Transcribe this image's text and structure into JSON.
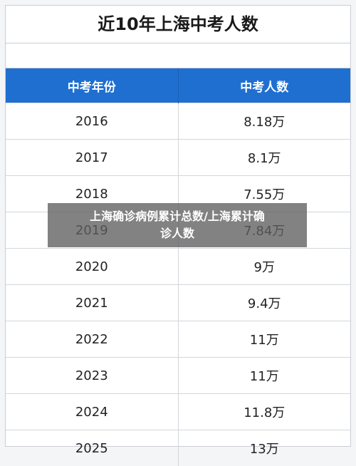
{
  "title": "近10年上海中考人数",
  "table": {
    "headers": [
      "中考年份",
      "中考人数"
    ],
    "rows": [
      {
        "year": "2016",
        "count": "8.18万"
      },
      {
        "year": "2017",
        "count": "8.1万"
      },
      {
        "year": "2018",
        "count": "7.55万"
      },
      {
        "year": "2019",
        "count": "7.84万"
      },
      {
        "year": "2020",
        "count": "9万"
      },
      {
        "year": "2021",
        "count": "9.4万"
      },
      {
        "year": "2022",
        "count": "11万"
      },
      {
        "year": "2023",
        "count": "11万"
      },
      {
        "year": "2024",
        "count": "11.8万"
      },
      {
        "year": "2025",
        "count": "13万"
      }
    ]
  },
  "banner": {
    "line1": "上海确诊病例累计总数/上海累计确",
    "line2": "诊人数"
  }
}
